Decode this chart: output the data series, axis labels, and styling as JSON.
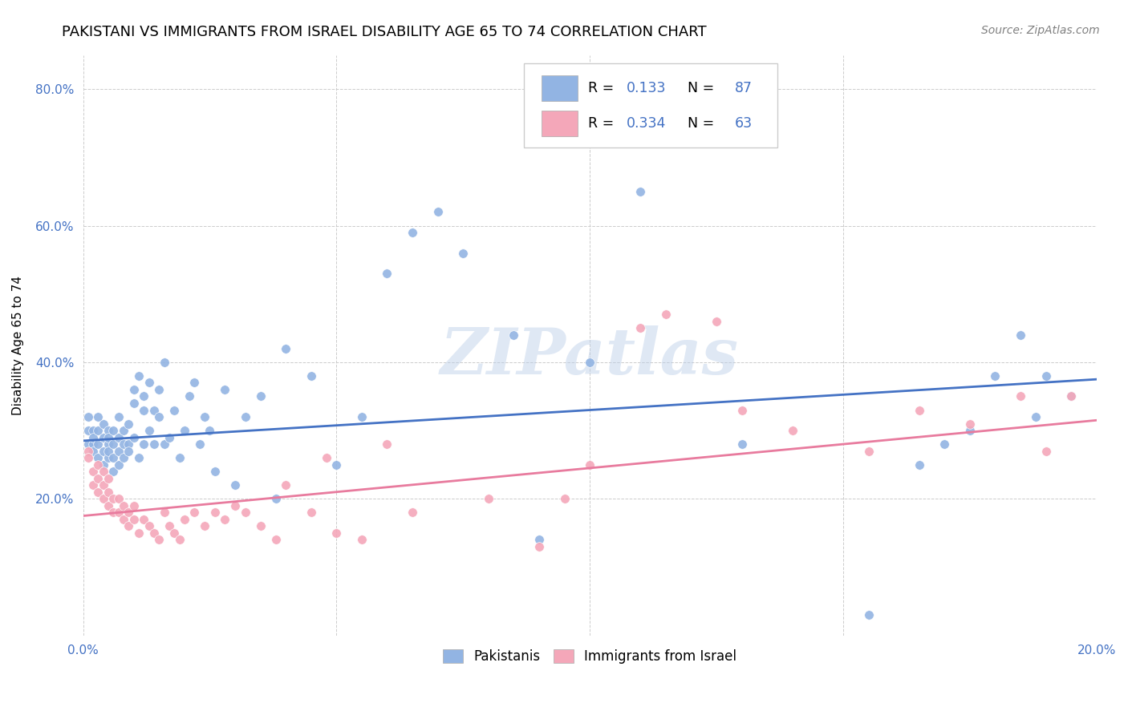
{
  "title": "PAKISTANI VS IMMIGRANTS FROM ISRAEL DISABILITY AGE 65 TO 74 CORRELATION CHART",
  "source": "Source: ZipAtlas.com",
  "ylabel": "Disability Age 65 to 74",
  "xlim": [
    0.0,
    0.2
  ],
  "ylim": [
    0.0,
    0.85
  ],
  "xticks": [
    0.0,
    0.05,
    0.1,
    0.15,
    0.2
  ],
  "yticks": [
    0.0,
    0.2,
    0.4,
    0.6,
    0.8
  ],
  "blue_color": "#92B4E3",
  "pink_color": "#F4A7B9",
  "blue_line_color": "#4472C4",
  "pink_line_color": "#E87B9E",
  "R_blue": 0.133,
  "N_blue": 87,
  "R_pink": 0.334,
  "N_pink": 63,
  "watermark": "ZIPatlas",
  "legend_labels": [
    "Pakistanis",
    "Immigrants from Israel"
  ],
  "blue_scatter_x": [
    0.001,
    0.001,
    0.001,
    0.002,
    0.002,
    0.002,
    0.002,
    0.003,
    0.003,
    0.003,
    0.003,
    0.004,
    0.004,
    0.004,
    0.004,
    0.005,
    0.005,
    0.005,
    0.005,
    0.005,
    0.006,
    0.006,
    0.006,
    0.006,
    0.007,
    0.007,
    0.007,
    0.007,
    0.008,
    0.008,
    0.008,
    0.009,
    0.009,
    0.009,
    0.01,
    0.01,
    0.01,
    0.011,
    0.011,
    0.012,
    0.012,
    0.012,
    0.013,
    0.013,
    0.014,
    0.014,
    0.015,
    0.015,
    0.016,
    0.016,
    0.017,
    0.018,
    0.019,
    0.02,
    0.021,
    0.022,
    0.023,
    0.024,
    0.025,
    0.026,
    0.028,
    0.03,
    0.032,
    0.035,
    0.038,
    0.04,
    0.045,
    0.05,
    0.055,
    0.06,
    0.065,
    0.07,
    0.075,
    0.085,
    0.09,
    0.1,
    0.11,
    0.13,
    0.155,
    0.165,
    0.17,
    0.175,
    0.18,
    0.185,
    0.188,
    0.19,
    0.195
  ],
  "blue_scatter_y": [
    0.28,
    0.3,
    0.32,
    0.28,
    0.3,
    0.27,
    0.29,
    0.26,
    0.28,
    0.3,
    0.32,
    0.27,
    0.29,
    0.31,
    0.25,
    0.26,
    0.28,
    0.3,
    0.27,
    0.29,
    0.24,
    0.26,
    0.28,
    0.3,
    0.27,
    0.29,
    0.32,
    0.25,
    0.26,
    0.28,
    0.3,
    0.28,
    0.31,
    0.27,
    0.34,
    0.29,
    0.36,
    0.38,
    0.26,
    0.28,
    0.33,
    0.35,
    0.3,
    0.37,
    0.28,
    0.33,
    0.32,
    0.36,
    0.28,
    0.4,
    0.29,
    0.33,
    0.26,
    0.3,
    0.35,
    0.37,
    0.28,
    0.32,
    0.3,
    0.24,
    0.36,
    0.22,
    0.32,
    0.35,
    0.2,
    0.42,
    0.38,
    0.25,
    0.32,
    0.53,
    0.59,
    0.62,
    0.56,
    0.44,
    0.14,
    0.4,
    0.65,
    0.28,
    0.03,
    0.25,
    0.28,
    0.3,
    0.38,
    0.44,
    0.32,
    0.38,
    0.35
  ],
  "pink_scatter_x": [
    0.001,
    0.001,
    0.002,
    0.002,
    0.003,
    0.003,
    0.003,
    0.004,
    0.004,
    0.004,
    0.005,
    0.005,
    0.005,
    0.006,
    0.006,
    0.007,
    0.007,
    0.008,
    0.008,
    0.009,
    0.009,
    0.01,
    0.01,
    0.011,
    0.012,
    0.013,
    0.014,
    0.015,
    0.016,
    0.017,
    0.018,
    0.019,
    0.02,
    0.022,
    0.024,
    0.026,
    0.028,
    0.03,
    0.032,
    0.035,
    0.038,
    0.04,
    0.045,
    0.048,
    0.05,
    0.055,
    0.06,
    0.065,
    0.08,
    0.09,
    0.095,
    0.1,
    0.11,
    0.115,
    0.125,
    0.13,
    0.14,
    0.155,
    0.165,
    0.175,
    0.185,
    0.19,
    0.195
  ],
  "pink_scatter_y": [
    0.27,
    0.26,
    0.24,
    0.22,
    0.23,
    0.21,
    0.25,
    0.2,
    0.22,
    0.24,
    0.19,
    0.21,
    0.23,
    0.18,
    0.2,
    0.18,
    0.2,
    0.17,
    0.19,
    0.16,
    0.18,
    0.17,
    0.19,
    0.15,
    0.17,
    0.16,
    0.15,
    0.14,
    0.18,
    0.16,
    0.15,
    0.14,
    0.17,
    0.18,
    0.16,
    0.18,
    0.17,
    0.19,
    0.18,
    0.16,
    0.14,
    0.22,
    0.18,
    0.26,
    0.15,
    0.14,
    0.28,
    0.18,
    0.2,
    0.13,
    0.2,
    0.25,
    0.45,
    0.47,
    0.46,
    0.33,
    0.3,
    0.27,
    0.33,
    0.31,
    0.35,
    0.27,
    0.35
  ],
  "background_color": "#ffffff",
  "title_fontsize": 13,
  "axis_label_fontsize": 11,
  "tick_fontsize": 11,
  "source_fontsize": 10
}
